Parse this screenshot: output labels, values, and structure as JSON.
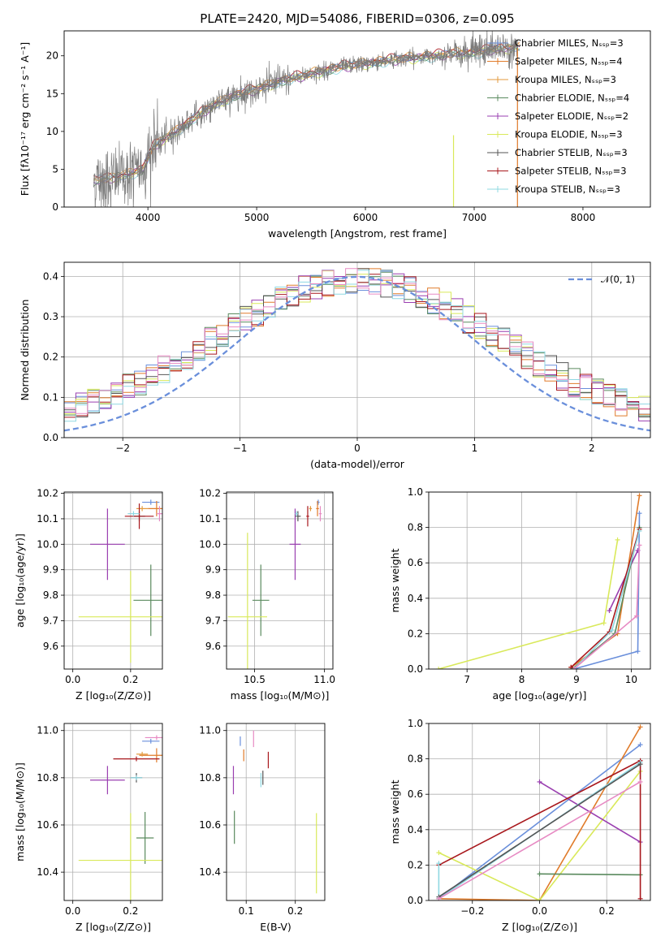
{
  "figure": {
    "title": "PLATE=2420, MJD=54086, FIBERID=0306, z=0.095"
  },
  "colors": {
    "Chabrier MILES": "#6a8fdb",
    "Salpeter MILES": "#e07b2a",
    "Kroupa MILES": "#e39a3e",
    "Chabrier ELODIE": "#5a8a5e",
    "Salpeter ELODIE": "#9a3fb0",
    "Kroupa ELODIE": "#d9e95a",
    "Chabrier STELIB": "#555555",
    "Salpeter STELIB": "#a8171c",
    "Kroupa STELIB": "#8fd8e2",
    "pink": "#e78ac3",
    "grid": "#b0b0b0"
  },
  "chart_data": [
    {
      "id": "spectrum",
      "type": "line",
      "xlabel": "wavelength [Angstrom, rest frame]",
      "ylabel": "Flux [fλ10⁻¹⁷ erg cm⁻² s⁻¹ A⁻¹]",
      "xlim": [
        3230,
        8620
      ],
      "ylim": [
        0,
        23.3
      ],
      "xticks": [
        4000,
        5000,
        6000,
        7000,
        8000
      ],
      "yticks": [
        0,
        5,
        10,
        15,
        20
      ],
      "grid": false,
      "legend_position": "top-right",
      "legend": [
        "Chabrier MILES, Nₛₛₚ=3",
        "Salpeter MILES, Nₛₛₚ=4",
        "Kroupa MILES, Nₛₛₚ=3",
        "Chabrier ELODIE, Nₛₛₚ=4",
        "Salpeter ELODIE, Nₛₛₚ=2",
        "Kroupa ELODIE, Nₛₛₚ=3",
        "Chabrier STELIB, Nₛₛₚ=3",
        "Salpeter STELIB, Nₛₛₚ=3",
        "Kroupa STELIB, Nₛₛₚ=3"
      ],
      "continuum": {
        "x": [
          3500,
          3650,
          3800,
          3950,
          4050,
          4200,
          4400,
          4600,
          4800,
          5000,
          5200,
          5400,
          5600,
          5800,
          6000,
          6200,
          6400,
          6600,
          6800,
          7000,
          7200,
          7400
        ],
        "y": [
          3.5,
          3.8,
          4.3,
          5.0,
          8.0,
          9.5,
          11.5,
          13.5,
          14.8,
          15.6,
          16.6,
          17.3,
          18.0,
          18.6,
          19.0,
          19.4,
          19.7,
          20.0,
          20.3,
          20.5,
          20.9,
          21.2
        ]
      }
    },
    {
      "id": "residual-histogram",
      "type": "line",
      "xlabel": "(data-model)/error",
      "ylabel": "Normed distribution",
      "xlim": [
        -2.5,
        2.5
      ],
      "ylim": [
        0,
        0.435
      ],
      "xticks": [
        -2,
        -1,
        0,
        1,
        2
      ],
      "yticks": [
        0.0,
        0.1,
        0.2,
        0.3,
        0.4
      ],
      "grid": true,
      "legend": [
        "𝒩(0, 1)"
      ],
      "gaussian": {
        "mean": 0,
        "sigma": 1
      },
      "bin_width": 0.1
    },
    {
      "id": "age-vs-Z",
      "type": "scatter",
      "xlabel": "Z [log₁₀(Z/Z⊙)]",
      "ylabel": "age  [log₁₀(age/yr)]",
      "xlim": [
        -0.03,
        0.31
      ],
      "ylim": [
        9.51,
        10.205
      ],
      "xticks": [
        0.0,
        0.2
      ],
      "yticks": [
        9.6,
        9.7,
        9.8,
        9.9,
        10.0,
        10.1,
        10.2
      ],
      "points": [
        {
          "x": 0.27,
          "y": 10.165,
          "xerr": 0.03,
          "yerr": 0.01,
          "series": "Chabrier MILES"
        },
        {
          "x": 0.29,
          "y": 10.14,
          "xerr": 0.03,
          "yerr": 0.03,
          "series": "Salpeter MILES"
        },
        {
          "x": 0.24,
          "y": 10.14,
          "xerr": 0.02,
          "yerr": 0.01,
          "series": "Kroupa MILES"
        },
        {
          "x": 0.27,
          "y": 9.78,
          "xerr": 0.06,
          "yerr": 0.14,
          "series": "Chabrier ELODIE"
        },
        {
          "x": 0.12,
          "y": 10.0,
          "xerr": 0.06,
          "yerr": 0.14,
          "series": "Salpeter ELODIE"
        },
        {
          "x": 0.2,
          "y": 9.715,
          "xerr": 0.18,
          "yerr": 0.18,
          "series": "Kroupa ELODIE"
        },
        {
          "x": 0.23,
          "y": 10.11,
          "xerr": 0.02,
          "yerr": 0.02,
          "series": "Chabrier STELIB"
        },
        {
          "x": 0.23,
          "y": 10.11,
          "xerr": 0.05,
          "yerr": 0.05,
          "series": "Salpeter STELIB"
        },
        {
          "x": 0.21,
          "y": 10.12,
          "xerr": 0.02,
          "yerr": 0.01,
          "series": "Kroupa STELIB"
        },
        {
          "x": 0.3,
          "y": 10.12,
          "xerr": 0.01,
          "yerr": 0.03,
          "series": "pink"
        }
      ]
    },
    {
      "id": "age-vs-mass",
      "type": "scatter",
      "xlabel": "mass [log₁₀(M/M⊙)]",
      "ylabel": "",
      "xlim": [
        10.3,
        11.06
      ],
      "ylim": [
        9.51,
        10.205
      ],
      "xticks": [
        10.5,
        11.0
      ],
      "yticks": [
        9.6,
        9.7,
        9.8,
        9.9,
        10.0,
        10.1,
        10.2
      ],
      "points": [
        {
          "x": 10.955,
          "y": 10.165,
          "xerr": 0.01,
          "yerr": 0.01,
          "series": "Chabrier MILES"
        },
        {
          "x": 10.95,
          "y": 10.14,
          "xerr": 0.01,
          "yerr": 0.03,
          "series": "Salpeter MILES"
        },
        {
          "x": 10.9,
          "y": 10.14,
          "xerr": 0.01,
          "yerr": 0.01,
          "series": "Kroupa MILES"
        },
        {
          "x": 10.545,
          "y": 9.78,
          "xerr": 0.06,
          "yerr": 0.14,
          "series": "Chabrier ELODIE"
        },
        {
          "x": 10.79,
          "y": 10.0,
          "xerr": 0.04,
          "yerr": 0.14,
          "series": "Salpeter ELODIE"
        },
        {
          "x": 10.45,
          "y": 9.715,
          "xerr": 0.14,
          "yerr": 0.33,
          "series": "Kroupa ELODIE"
        },
        {
          "x": 10.81,
          "y": 10.11,
          "xerr": 0.02,
          "yerr": 0.02,
          "series": "Chabrier STELIB"
        },
        {
          "x": 10.88,
          "y": 10.11,
          "xerr": 0.01,
          "yerr": 0.04,
          "series": "Salpeter STELIB"
        },
        {
          "x": 10.8,
          "y": 10.12,
          "xerr": 0.01,
          "yerr": 0.01,
          "series": "Kroupa STELIB"
        },
        {
          "x": 10.97,
          "y": 10.12,
          "xerr": 0.01,
          "yerr": 0.03,
          "series": "pink"
        }
      ]
    },
    {
      "id": "mass-weight-vs-age",
      "type": "line",
      "xlabel": "age  [log₁₀(age/yr)]",
      "ylabel": "mass weight",
      "xlim": [
        6.3,
        10.35
      ],
      "ylim": [
        0,
        1
      ],
      "xticks": [
        7,
        8,
        9,
        10
      ],
      "yticks": [
        0.0,
        0.2,
        0.4,
        0.6,
        0.8,
        1.0
      ],
      "grid": true,
      "series": [
        {
          "series": "Kroupa ELODIE",
          "x": [
            6.48,
            9.5,
            9.75
          ],
          "y": [
            0.0,
            0.26,
            0.73
          ]
        },
        {
          "series": "Salpeter MILES",
          "x": [
            8.9,
            9.75,
            10.15
          ],
          "y": [
            0.01,
            0.2,
            0.98
          ]
        },
        {
          "series": "Chabrier MILES",
          "x": [
            8.95,
            10.12,
            10.15
          ],
          "y": [
            0.0,
            0.1,
            0.88
          ]
        },
        {
          "series": "Salpeter ELODIE",
          "x": [
            9.6,
            10.12
          ],
          "y": [
            0.33,
            0.67
          ]
        },
        {
          "series": "Chabrier ELODIE",
          "x": [
            8.92,
            9.7,
            10.15
          ],
          "y": [
            0.0,
            0.2,
            0.8
          ]
        },
        {
          "series": "Salpeter STELIB",
          "x": [
            8.9,
            9.6,
            10.15
          ],
          "y": [
            0.01,
            0.21,
            0.79
          ]
        },
        {
          "series": "Kroupa STELIB",
          "x": [
            8.95,
            9.65,
            10.15
          ],
          "y": [
            0.0,
            0.22,
            0.78
          ]
        },
        {
          "series": "pink",
          "x": [
            8.95,
            10.1,
            10.15
          ],
          "y": [
            0.0,
            0.3,
            0.7
          ]
        }
      ]
    },
    {
      "id": "mass-vs-Z",
      "type": "scatter",
      "xlabel": "Z [log₁₀(Z/Z⊙)]",
      "ylabel": "mass [log₁₀(M/M⊙)]",
      "xlim": [
        -0.03,
        0.31
      ],
      "ylim": [
        10.28,
        11.03
      ],
      "xticks": [
        0.0,
        0.2
      ],
      "yticks": [
        10.4,
        10.6,
        10.8,
        11.0
      ],
      "points": [
        {
          "x": 0.27,
          "y": 10.955,
          "xerr": 0.03,
          "yerr": 0.01,
          "series": "Chabrier MILES"
        },
        {
          "x": 0.29,
          "y": 10.895,
          "xerr": 0.06,
          "yerr": 0.03,
          "series": "Salpeter MILES"
        },
        {
          "x": 0.24,
          "y": 10.9,
          "xerr": 0.02,
          "yerr": 0.01,
          "series": "Kroupa MILES"
        },
        {
          "x": 0.25,
          "y": 10.545,
          "xerr": 0.03,
          "yerr": 0.11,
          "series": "Chabrier ELODIE"
        },
        {
          "x": 0.12,
          "y": 10.79,
          "xerr": 0.06,
          "yerr": 0.06,
          "series": "Salpeter ELODIE"
        },
        {
          "x": 0.2,
          "y": 10.45,
          "xerr": 0.18,
          "yerr": 0.2,
          "series": "Kroupa ELODIE"
        },
        {
          "x": 0.22,
          "y": 10.8,
          "xerr": 0.02,
          "yerr": 0.02,
          "series": "Chabrier STELIB"
        },
        {
          "x": 0.22,
          "y": 10.88,
          "xerr": 0.08,
          "yerr": 0.01,
          "series": "Salpeter STELIB"
        },
        {
          "x": 0.22,
          "y": 10.8,
          "xerr": 0.02,
          "yerr": 0.01,
          "series": "Kroupa STELIB"
        },
        {
          "x": 0.29,
          "y": 10.97,
          "xerr": 0.04,
          "yerr": 0.01,
          "series": "pink"
        }
      ]
    },
    {
      "id": "mass-vs-EBV",
      "type": "scatter",
      "xlabel": "E(B-V)",
      "ylabel": "",
      "xlim": [
        0.06,
        0.26
      ],
      "ylim": [
        10.28,
        11.03
      ],
      "xticks": [
        0.1,
        0.2
      ],
      "yticks": [
        10.4,
        10.6,
        10.8,
        11.0
      ],
      "points": [
        {
          "x": 0.088,
          "y": 10.955,
          "yerr": 0.02,
          "series": "Chabrier MILES"
        },
        {
          "x": 0.095,
          "y": 10.895,
          "yerr": 0.025,
          "series": "Salpeter MILES"
        },
        {
          "x": 0.076,
          "y": 10.59,
          "yerr": 0.07,
          "series": "Chabrier ELODIE"
        },
        {
          "x": 0.074,
          "y": 10.79,
          "yerr": 0.06,
          "series": "Salpeter ELODIE"
        },
        {
          "x": 0.243,
          "y": 10.48,
          "yerr": 0.17,
          "series": "Kroupa ELODIE"
        },
        {
          "x": 0.134,
          "y": 10.8,
          "yerr": 0.03,
          "series": "Chabrier STELIB"
        },
        {
          "x": 0.145,
          "y": 10.875,
          "yerr": 0.035,
          "series": "Salpeter STELIB"
        },
        {
          "x": 0.13,
          "y": 10.79,
          "yerr": 0.03,
          "series": "Kroupa STELIB"
        },
        {
          "x": 0.115,
          "y": 10.965,
          "yerr": 0.035,
          "series": "pink"
        }
      ]
    },
    {
      "id": "mass-weight-vs-Z",
      "type": "line",
      "xlabel": "Z [log₁₀(Z/Z⊙)]",
      "ylabel": "mass weight",
      "xlim": [
        -0.33,
        0.33
      ],
      "ylim": [
        0,
        1
      ],
      "xticks": [
        -0.2,
        0.0,
        0.2
      ],
      "yticks": [
        0.0,
        0.2,
        0.4,
        0.6,
        0.8,
        1.0
      ],
      "grid": true,
      "series": [
        {
          "series": "Chabrier MILES",
          "x": [
            -0.3,
            0.3
          ],
          "y": [
            0.01,
            0.88
          ]
        },
        {
          "series": "Salpeter MILES",
          "x": [
            -0.3,
            0.0,
            0.3
          ],
          "y": [
            0.01,
            0.0,
            0.98
          ]
        },
        {
          "series": "Kroupa ELODIE",
          "x": [
            -0.3,
            0.0,
            0.3
          ],
          "y": [
            0.27,
            0.0,
            0.73
          ]
        },
        {
          "series": "Salpeter ELODIE",
          "x": [
            0.0,
            0.3
          ],
          "y": [
            0.67,
            0.33
          ]
        },
        {
          "series": "Chabrier ELODIE",
          "x": [
            0.0,
            0.3
          ],
          "y": [
            0.15,
            0.145
          ]
        },
        {
          "series": "Salpeter STELIB",
          "x": [
            -0.3,
            0.3,
            0.3
          ],
          "y": [
            0.2,
            0.79,
            0.01
          ]
        },
        {
          "series": "Kroupa STELIB",
          "x": [
            -0.3,
            -0.3,
            0.3
          ],
          "y": [
            0.21,
            0.01,
            0.78
          ]
        },
        {
          "series": "Chabrier STELIB",
          "x": [
            -0.3,
            0.3
          ],
          "y": [
            0.02,
            0.77
          ]
        },
        {
          "series": "pink",
          "x": [
            -0.3,
            0.3
          ],
          "y": [
            0.01,
            0.67
          ]
        }
      ]
    }
  ]
}
